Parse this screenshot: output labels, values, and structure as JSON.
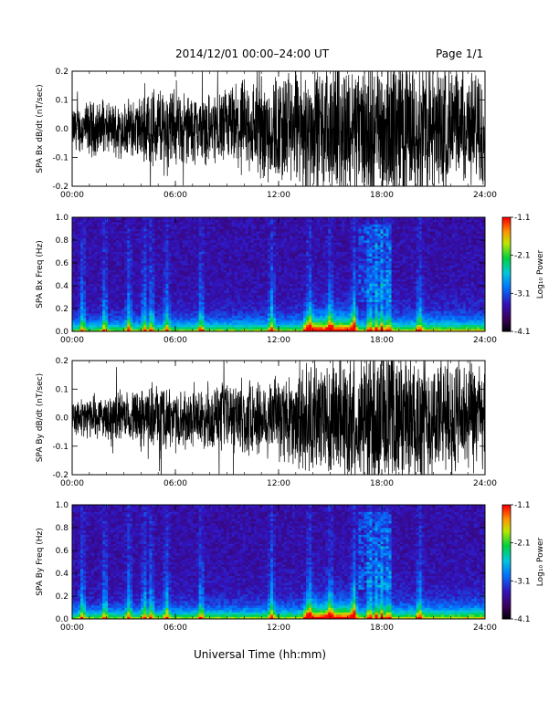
{
  "header": {
    "title": "2014/12/01   00:00–24:00 UT",
    "page": "Page 1/1"
  },
  "footer": {
    "xlabel": "Universal Time (hh:mm)"
  },
  "chart_data": [
    {
      "type": "line",
      "ylabel": "SPA Bx dB/dt (nT/sec)",
      "x_range_hours": [
        0,
        24
      ],
      "x_ticks": [
        "00:00",
        "06:00",
        "12:00",
        "18:00",
        "24:00"
      ],
      "ylim": [
        -0.2,
        0.2
      ],
      "y_ticks": [
        "0.2",
        "0.1",
        "0.0",
        "-0.1",
        "-0.2"
      ],
      "envelope": {
        "hours": [
          0,
          1,
          2,
          3,
          4,
          4.5,
          5,
          6,
          7,
          8,
          9,
          10,
          11,
          12,
          13,
          14,
          15,
          16,
          17,
          18,
          19,
          20,
          21,
          22,
          23,
          24
        ],
        "amplitude": [
          0.06,
          0.08,
          0.07,
          0.08,
          0.09,
          0.12,
          0.13,
          0.11,
          0.1,
          0.1,
          0.12,
          0.14,
          0.16,
          0.16,
          0.17,
          0.17,
          0.18,
          0.19,
          0.2,
          0.2,
          0.2,
          0.2,
          0.19,
          0.18,
          0.17,
          0.16
        ]
      },
      "grid": false
    },
    {
      "type": "heatmap",
      "ylabel": "SPA Bx Freq (Hz)",
      "x_range_hours": [
        0,
        24
      ],
      "x_ticks": [
        "00:00",
        "06:00",
        "12:00",
        "18:00",
        "24:00"
      ],
      "ylim": [
        0.0,
        1.0
      ],
      "y_ticks": [
        "1.0",
        "0.8",
        "0.6",
        "0.4",
        "0.2",
        "0.0"
      ],
      "colorbar": {
        "label": "Log₁₀ Power",
        "range": [
          -4.1,
          -1.1
        ],
        "ticks": [
          "-1.1",
          "-2.1",
          "-3.1",
          "-4.1"
        ]
      },
      "features": {
        "bursts_hours": [
          0.6,
          1.9,
          3.3,
          4.2,
          4.6,
          5.5,
          7.5,
          11.6,
          13.8,
          15.0,
          16.4,
          17.3,
          17.7,
          18.0,
          18.4,
          20.2
        ],
        "peak_activity_hours": [
          13.5,
          16.5
        ]
      },
      "grid": false
    },
    {
      "type": "line",
      "ylabel": "SPA By dB/dt (nT/sec)",
      "x_range_hours": [
        0,
        24
      ],
      "x_ticks": [
        "00:00",
        "06:00",
        "12:00",
        "18:00",
        "24:00"
      ],
      "ylim": [
        -0.2,
        0.2
      ],
      "y_ticks": [
        "0.2",
        "0.1",
        "0.0",
        "-0.1",
        "-0.2"
      ],
      "envelope": {
        "hours": [
          0,
          1,
          2,
          3,
          4,
          4.5,
          5,
          6,
          7,
          8,
          9,
          10,
          11,
          12,
          13,
          14,
          15,
          16,
          17,
          18,
          19,
          20,
          21,
          22,
          23,
          24
        ],
        "amplitude": [
          0.05,
          0.06,
          0.06,
          0.07,
          0.08,
          0.1,
          0.1,
          0.08,
          0.08,
          0.09,
          0.1,
          0.11,
          0.12,
          0.13,
          0.15,
          0.16,
          0.17,
          0.18,
          0.2,
          0.2,
          0.2,
          0.19,
          0.18,
          0.17,
          0.16,
          0.15
        ]
      },
      "grid": false
    },
    {
      "type": "heatmap",
      "ylabel": "SPA By Freq (Hz)",
      "x_range_hours": [
        0,
        24
      ],
      "x_ticks": [
        "00:00",
        "06:00",
        "12:00",
        "18:00",
        "24:00"
      ],
      "ylim": [
        0.0,
        1.0
      ],
      "y_ticks": [
        "1.0",
        "0.8",
        "0.6",
        "0.4",
        "0.2",
        "0.0"
      ],
      "colorbar": {
        "label": "Log₁₀ Power",
        "range": [
          -4.1,
          -1.1
        ],
        "ticks": [
          "-1.1",
          "-2.1",
          "-3.1",
          "-4.1"
        ]
      },
      "features": {
        "bursts_hours": [
          0.6,
          1.9,
          3.3,
          4.2,
          4.6,
          5.5,
          7.5,
          11.6,
          13.8,
          15.0,
          16.4,
          17.3,
          17.7,
          18.0,
          18.4,
          20.2
        ],
        "peak_activity_hours": [
          13.5,
          16.5
        ]
      },
      "grid": false
    }
  ]
}
